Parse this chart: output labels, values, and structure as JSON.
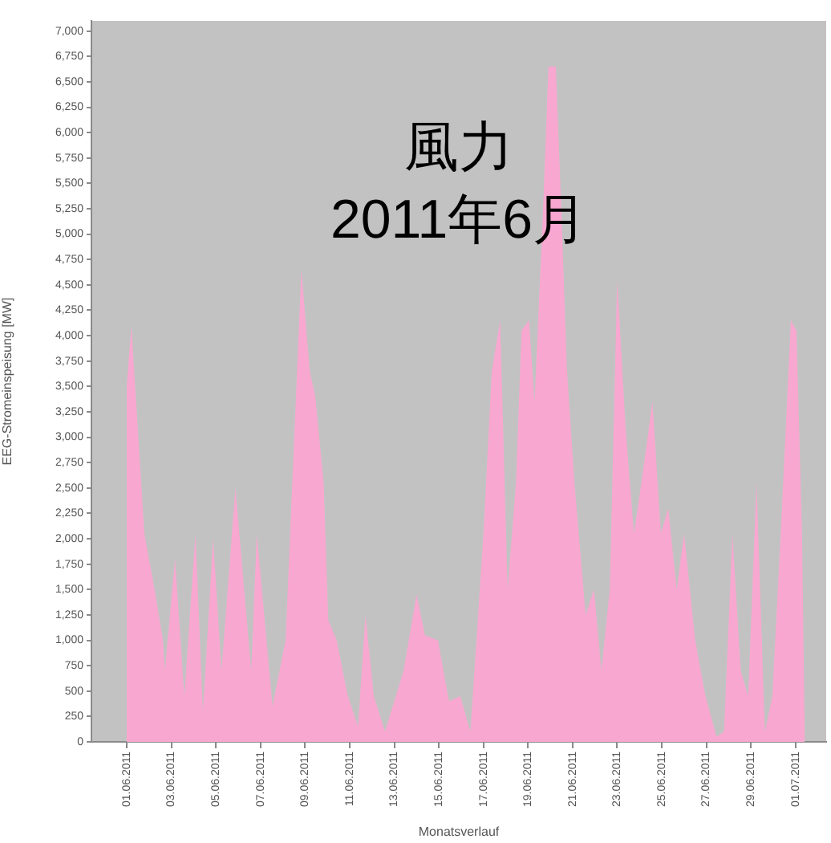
{
  "chart_data": {
    "type": "area",
    "title": "風力",
    "subtitle": "2011年6月",
    "xlabel": "Monatsverlauf",
    "ylabel": "EEG-Stromeinspeisung [MW]",
    "color": "#f8a8d0",
    "x": [
      "2011-06-01T00:00",
      "2011-06-01T05:00",
      "2011-06-01T19:00",
      "2011-06-02T06:00",
      "2011-06-02T15:00",
      "2011-06-02T17:00",
      "2011-06-03T04:00",
      "2011-06-03T14:00",
      "2011-06-04T02:00",
      "2011-06-04T10:00",
      "2011-06-04T21:00",
      "2011-06-05T06:00",
      "2011-06-05T21:00",
      "2011-06-06T14:00",
      "2011-06-06T20:00",
      "2011-06-07T13:00",
      "2011-06-08T03:00",
      "2011-06-08T20:00",
      "2011-06-09T05:00",
      "2011-06-09T11:00",
      "2011-06-09T20:00",
      "2011-06-10T01:00",
      "2011-06-10T10:00",
      "2011-06-10T22:00",
      "2011-06-11T09:00",
      "2011-06-11T17:00",
      "2011-06-12T02:00",
      "2011-06-12T14:00",
      "2011-06-13T10:00",
      "2011-06-14T00:00",
      "2011-06-14T09:00",
      "2011-06-14T23:00",
      "2011-06-15T11:00",
      "2011-06-15T23:00",
      "2011-06-16T10:00",
      "2011-06-17T00:00",
      "2011-06-17T09:00",
      "2011-06-17T18:00",
      "2011-06-18T02:00",
      "2011-06-18T11:00",
      "2011-06-18T17:00",
      "2011-06-19T01:00",
      "2011-06-19T07:00",
      "2011-06-19T16:00",
      "2011-06-19T22:00",
      "2011-06-20T06:00",
      "2011-06-20T12:00",
      "2011-06-20T18:00",
      "2011-06-21T02:00",
      "2011-06-21T14:00",
      "2011-06-21T23:00",
      "2011-06-22T07:00",
      "2011-06-22T16:00",
      "2011-06-23T00:00",
      "2011-06-23T09:00",
      "2011-06-23T18:00",
      "2011-06-24T02:00",
      "2011-06-24T14:00",
      "2011-06-24T23:00",
      "2011-06-25T07:00",
      "2011-06-25T16:00",
      "2011-06-26T00:00",
      "2011-06-26T12:00",
      "2011-06-26T23:00",
      "2011-06-27T11:00",
      "2011-06-27T19:00",
      "2011-06-28T04:00",
      "2011-06-28T13:00",
      "2011-06-28T21:00",
      "2011-06-29T06:00",
      "2011-06-29T15:00",
      "2011-06-29T23:00",
      "2011-06-30T08:00",
      "2011-06-30T19:00",
      "2011-07-01T01:00",
      "2011-07-01T07:00",
      "2011-07-01T10:00"
    ],
    "values": [
      3500,
      4100,
      2050,
      1500,
      1000,
      700,
      1800,
      450,
      2050,
      300,
      2000,
      700,
      2500,
      700,
      2050,
      350,
      1000,
      4650,
      3650,
      3400,
      2550,
      1200,
      1000,
      450,
      150,
      1250,
      450,
      100,
      700,
      1450,
      1050,
      1000,
      400,
      450,
      100,
      2050,
      3650,
      4150,
      1500,
      2550,
      4050,
      4150,
      3350,
      5200,
      6650,
      6650,
      5200,
      3650,
      2550,
      1250,
      1500,
      700,
      1500,
      4550,
      3100,
      2050,
      2550,
      3350,
      2050,
      2300,
      1500,
      2050,
      1000,
      450,
      50,
      100,
      2050,
      700,
      450,
      2550,
      100,
      450,
      2050,
      4150,
      4050,
      2050,
      0
    ],
    "xlim": [
      "2011-05-30T10:00",
      "2011-07-02T09:00"
    ],
    "xticks": [
      {
        "value": "2011-06-01",
        "label": "01.06.2011"
      },
      {
        "value": "2011-06-03",
        "label": "03.06.2011"
      },
      {
        "value": "2011-06-05",
        "label": "05.06.2011"
      },
      {
        "value": "2011-06-07",
        "label": "07.06.2011"
      },
      {
        "value": "2011-06-09",
        "label": "09.06.2011"
      },
      {
        "value": "2011-06-11",
        "label": "11.06.2011"
      },
      {
        "value": "2011-06-13",
        "label": "13.06.2011"
      },
      {
        "value": "2011-06-15",
        "label": "15.06.2011"
      },
      {
        "value": "2011-06-17",
        "label": "17.06.2011"
      },
      {
        "value": "2011-06-19",
        "label": "19.06.2011"
      },
      {
        "value": "2011-06-21",
        "label": "21.06.2011"
      },
      {
        "value": "2011-06-23",
        "label": "23.06.2011"
      },
      {
        "value": "2011-06-25",
        "label": "25.06.2011"
      },
      {
        "value": "2011-06-27",
        "label": "27.06.2011"
      },
      {
        "value": "2011-06-29",
        "label": "29.06.2011"
      },
      {
        "value": "2011-07-01",
        "label": "01.07.2011"
      }
    ],
    "ylim": [
      0,
      7100
    ],
    "yticks": [
      0,
      250,
      500,
      750,
      {
        "value": 1000,
        "label": "1,000"
      },
      {
        "value": 1250,
        "label": "1,250"
      },
      {
        "value": 1500,
        "label": "1,500"
      },
      {
        "value": 1750,
        "label": "1,750"
      },
      {
        "value": 2000,
        "label": "2,000"
      },
      {
        "value": 2250,
        "label": "2,250"
      },
      {
        "value": 2500,
        "label": "2,500"
      },
      {
        "value": 2750,
        "label": "2,750"
      },
      {
        "value": 3000,
        "label": "3,000"
      },
      {
        "value": 3250,
        "label": "3,250"
      },
      {
        "value": 3500,
        "label": "3,500"
      },
      {
        "value": 3750,
        "label": "3,750"
      },
      {
        "value": 4000,
        "label": "4,000"
      },
      {
        "value": 4250,
        "label": "4,250"
      },
      {
        "value": 4500,
        "label": "4,500"
      },
      {
        "value": 4750,
        "label": "4,750"
      },
      {
        "value": 5000,
        "label": "5,000"
      },
      {
        "value": 5250,
        "label": "5,250"
      },
      {
        "value": 5500,
        "label": "5,500"
      },
      {
        "value": 5750,
        "label": "5,750"
      },
      {
        "value": 6000,
        "label": "6,000"
      },
      {
        "value": 6250,
        "label": "6,250"
      },
      {
        "value": 6500,
        "label": "6,500"
      },
      {
        "value": 6750,
        "label": "6,750"
      },
      {
        "value": 7000,
        "label": "7,000"
      }
    ]
  }
}
